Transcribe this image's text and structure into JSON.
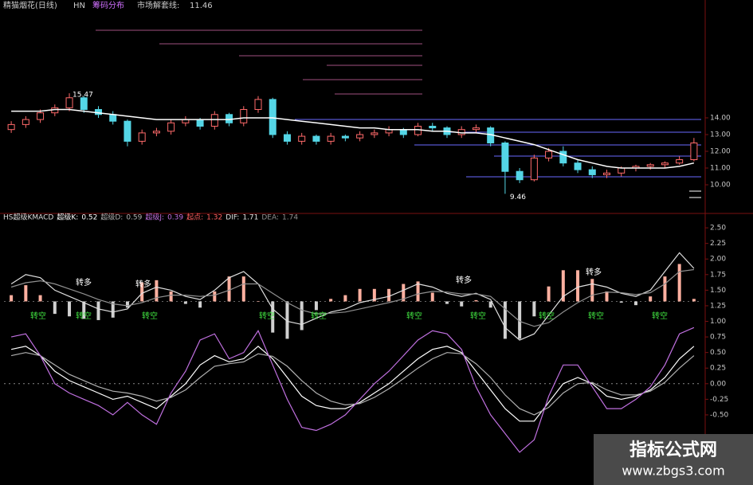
{
  "header": {
    "title": "精猫烟花(日线)",
    "code": "HN",
    "tab": "筹码分布",
    "line_label": "市场解套线:",
    "line_value": 11.46
  },
  "watermark": {
    "title": "指标公式网",
    "url": "www.zbgs3.com"
  },
  "chart_data": [
    {
      "type": "candlestick",
      "up_color": "#ff6a6a",
      "down_color": "#54d6e6",
      "open": [
        13.3,
        13.6,
        13.9,
        14.3,
        14.6,
        15.2,
        14.5,
        14.2,
        13.8,
        12.6,
        13.1,
        13.2,
        13.7,
        13.9,
        13.5,
        14.2,
        13.7,
        14.5,
        15.1,
        13.0,
        12.6,
        12.9,
        12.6,
        12.9,
        12.8,
        13.0,
        13.1,
        13.3,
        13.0,
        13.5,
        13.4,
        13.0,
        13.3,
        13.4,
        12.5,
        10.8,
        10.3,
        11.6,
        12.0,
        11.3,
        10.9,
        10.6,
        10.7,
        11.0,
        11.1,
        11.2,
        11.3,
        11.5
      ],
      "high": [
        13.8,
        14.1,
        14.5,
        14.8,
        15.47,
        15.3,
        14.7,
        14.4,
        13.9,
        13.3,
        13.4,
        13.9,
        14.1,
        14.0,
        14.4,
        14.3,
        14.7,
        15.3,
        15.2,
        13.2,
        13.1,
        13.0,
        13.1,
        13.0,
        13.2,
        13.3,
        13.5,
        13.4,
        13.7,
        13.7,
        13.5,
        13.5,
        13.6,
        13.5,
        12.6,
        11.0,
        11.8,
        12.2,
        12.3,
        11.5,
        11.1,
        10.9,
        11.1,
        11.2,
        11.3,
        11.4,
        11.7,
        12.8
      ],
      "low": [
        13.1,
        13.4,
        13.7,
        14.1,
        14.4,
        14.3,
        14.0,
        13.6,
        12.3,
        12.4,
        12.9,
        13.0,
        13.5,
        13.3,
        13.3,
        13.5,
        13.5,
        14.3,
        12.8,
        12.4,
        12.4,
        12.4,
        12.4,
        12.6,
        12.6,
        12.8,
        12.9,
        12.8,
        12.9,
        13.2,
        12.8,
        12.8,
        13.1,
        12.3,
        9.46,
        10.1,
        10.2,
        11.4,
        11.1,
        10.7,
        10.4,
        10.4,
        10.5,
        10.8,
        10.9,
        11.0,
        11.2,
        11.4
      ],
      "close": [
        13.6,
        13.9,
        14.3,
        14.6,
        15.2,
        14.5,
        14.2,
        13.8,
        12.6,
        13.1,
        13.2,
        13.7,
        13.9,
        13.5,
        14.2,
        13.7,
        14.5,
        15.1,
        13.0,
        12.6,
        12.9,
        12.6,
        12.9,
        12.8,
        13.0,
        13.1,
        13.3,
        13.0,
        13.5,
        13.4,
        13.0,
        13.3,
        13.4,
        12.5,
        10.8,
        10.3,
        11.6,
        12.0,
        11.3,
        10.9,
        10.6,
        10.7,
        11.0,
        11.1,
        11.2,
        11.3,
        11.5,
        12.5
      ],
      "ma": {
        "color": "#ffffff",
        "values": [
          14.4,
          14.4,
          14.4,
          14.5,
          14.5,
          14.4,
          14.3,
          14.2,
          14.1,
          14.0,
          13.9,
          13.9,
          13.9,
          13.9,
          13.9,
          13.9,
          14.0,
          14.0,
          14.0,
          13.9,
          13.8,
          13.7,
          13.6,
          13.5,
          13.4,
          13.4,
          13.3,
          13.3,
          13.3,
          13.2,
          13.2,
          13.1,
          13.1,
          13.0,
          12.8,
          12.6,
          12.4,
          12.1,
          11.8,
          11.5,
          11.3,
          11.1,
          11.0,
          11.0,
          11.0,
          11.0,
          11.1,
          11.3
        ]
      },
      "max_label": 15.47,
      "min_label": 9.46,
      "ylim": [
        8.43,
        20.33
      ],
      "yticks": [
        {
          "value": 10,
          "label": "10.00"
        },
        {
          "value": 11,
          "label": "11.00"
        },
        {
          "value": 12,
          "label": "12.00"
        },
        {
          "value": 13,
          "label": "13.00"
        },
        {
          "value": 14,
          "label": "14.00"
        }
      ]
    },
    {
      "type": "indicator",
      "title": "HS超级KMACD",
      "series": [
        {
          "name": "超级K:",
          "current": 0.52,
          "color": "#ffffff",
          "values": [
            0.55,
            0.6,
            0.45,
            0.2,
            0.05,
            -0.05,
            -0.15,
            -0.25,
            -0.2,
            -0.3,
            -0.4,
            -0.2,
            0.0,
            0.3,
            0.45,
            0.35,
            0.4,
            0.6,
            0.4,
            0.1,
            -0.2,
            -0.35,
            -0.4,
            -0.4,
            -0.3,
            -0.15,
            0.0,
            0.2,
            0.4,
            0.55,
            0.6,
            0.5,
            0.2,
            -0.1,
            -0.4,
            -0.6,
            -0.6,
            -0.3,
            0.0,
            0.1,
            0.0,
            -0.2,
            -0.25,
            -0.2,
            -0.1,
            0.1,
            0.4,
            0.6
          ]
        },
        {
          "name": "超级D:",
          "current": 0.59,
          "color": "#b0b0b0",
          "values": [
            0.45,
            0.5,
            0.45,
            0.3,
            0.15,
            0.05,
            -0.05,
            -0.12,
            -0.15,
            -0.2,
            -0.28,
            -0.22,
            -0.1,
            0.1,
            0.28,
            0.32,
            0.35,
            0.48,
            0.44,
            0.28,
            0.05,
            -0.15,
            -0.28,
            -0.34,
            -0.32,
            -0.22,
            -0.08,
            0.08,
            0.25,
            0.4,
            0.5,
            0.48,
            0.32,
            0.1,
            -0.18,
            -0.4,
            -0.5,
            -0.38,
            -0.15,
            0.0,
            0.02,
            -0.1,
            -0.18,
            -0.18,
            -0.12,
            0.02,
            0.25,
            0.45
          ]
        },
        {
          "name": "超级J:",
          "current": 0.39,
          "color": "#c070e0",
          "values": [
            0.75,
            0.8,
            0.45,
            0.0,
            -0.15,
            -0.25,
            -0.35,
            -0.5,
            -0.3,
            -0.5,
            -0.65,
            -0.15,
            0.2,
            0.7,
            0.8,
            0.4,
            0.5,
            0.85,
            0.3,
            -0.25,
            -0.7,
            -0.75,
            -0.65,
            -0.5,
            -0.25,
            0.0,
            0.2,
            0.45,
            0.7,
            0.85,
            0.8,
            0.55,
            -0.05,
            -0.5,
            -0.8,
            -1.1,
            -0.9,
            -0.2,
            0.3,
            0.3,
            -0.05,
            -0.4,
            -0.4,
            -0.25,
            -0.05,
            0.3,
            0.8,
            0.9
          ]
        },
        {
          "name": "DIF:",
          "current": 1.71,
          "color": "#e0e0e0",
          "values": [
            1.6,
            1.75,
            1.7,
            1.5,
            1.4,
            1.3,
            1.2,
            1.15,
            1.2,
            1.45,
            1.55,
            1.5,
            1.4,
            1.35,
            1.5,
            1.7,
            1.8,
            1.6,
            1.2,
            1.0,
            0.95,
            1.05,
            1.15,
            1.2,
            1.3,
            1.35,
            1.4,
            1.5,
            1.6,
            1.55,
            1.45,
            1.4,
            1.45,
            1.35,
            0.9,
            0.7,
            0.8,
            1.1,
            1.4,
            1.55,
            1.6,
            1.55,
            1.45,
            1.4,
            1.5,
            1.8,
            2.1,
            1.85
          ]
        },
        {
          "name": "DEA:",
          "current": 1.74,
          "color": "#909090",
          "values": [
            1.55,
            1.62,
            1.65,
            1.6,
            1.52,
            1.44,
            1.35,
            1.28,
            1.25,
            1.3,
            1.38,
            1.42,
            1.42,
            1.4,
            1.42,
            1.5,
            1.6,
            1.6,
            1.45,
            1.3,
            1.18,
            1.12,
            1.13,
            1.15,
            1.2,
            1.25,
            1.3,
            1.36,
            1.44,
            1.48,
            1.47,
            1.44,
            1.44,
            1.4,
            1.2,
            1.0,
            0.92,
            0.98,
            1.15,
            1.3,
            1.42,
            1.47,
            1.46,
            1.43,
            1.46,
            1.6,
            1.8,
            1.83
          ]
        }
      ],
      "macd": {
        "base_label": "起点:",
        "base": 1.32,
        "up_color": "#ffb0a0",
        "down_color": "#d0d0d0",
        "values": [
          0.1,
          0.26,
          0.1,
          -0.2,
          -0.24,
          -0.28,
          -0.3,
          -0.26,
          -0.1,
          0.3,
          0.34,
          0.16,
          -0.04,
          -0.1,
          0.16,
          0.4,
          0.4,
          0.0,
          -0.5,
          -0.6,
          -0.46,
          -0.14,
          0.04,
          0.1,
          0.2,
          0.2,
          0.2,
          0.28,
          0.32,
          0.14,
          -0.04,
          -0.08,
          0.02,
          -0.1,
          -0.6,
          -0.6,
          -0.24,
          0.24,
          0.5,
          0.5,
          0.36,
          0.16,
          -0.02,
          -0.06,
          0.08,
          0.4,
          0.6,
          0.04
        ]
      },
      "buy_labels": [
        "转多",
        "转多",
        "转多",
        "转多"
      ],
      "sell_labels": [
        "转空",
        "转空",
        "转空",
        "转空",
        "转空",
        "转空",
        "转空",
        "转空",
        "转空",
        "转空"
      ],
      "ylim": [
        -1.51,
        2.68
      ],
      "yticks": [
        {
          "value": 2.5,
          "label": "2.50"
        },
        {
          "value": 2.25,
          "label": "2.25"
        },
        {
          "value": 2,
          "label": "2.00"
        },
        {
          "value": 1.75,
          "label": "1.75"
        },
        {
          "value": 1.5,
          "label": "1.50"
        },
        {
          "value": 1.25,
          "label": "1.25"
        },
        {
          "value": 1,
          "label": "1.00"
        },
        {
          "value": 0.75,
          "label": "0.75"
        },
        {
          "value": 0.5,
          "label": "0.50"
        },
        {
          "value": 0.25,
          "label": "0.25"
        },
        {
          "value": 0,
          "label": "0.00"
        },
        {
          "value": -0.25,
          "label": "-0.25"
        },
        {
          "value": -0.5,
          "label": "-0.50"
        }
      ]
    }
  ]
}
